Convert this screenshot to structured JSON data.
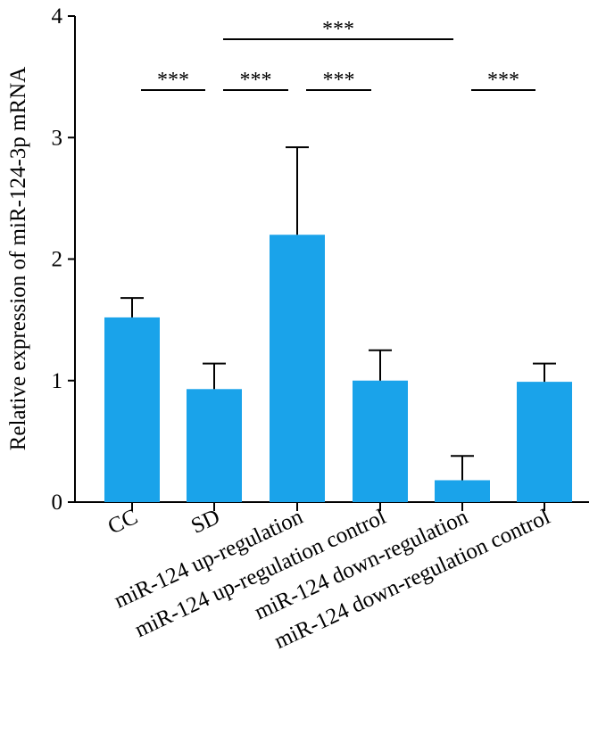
{
  "chart_data": {
    "type": "bar",
    "title": "",
    "xlabel": "",
    "ylabel": "Relative expression of miR-124-3p mRNA",
    "ylim": [
      0,
      4
    ],
    "yticks": [
      "0",
      "1",
      "2",
      "3",
      "4"
    ],
    "categories": [
      "CC",
      "SD",
      "miR-124 up-regulation",
      "miR-124 up-regulation control",
      "miR-124 down-regulation",
      "miR-124 down-regulation control"
    ],
    "values": [
      1.52,
      0.93,
      2.2,
      1.0,
      0.18,
      0.99
    ],
    "errors": [
      0.16,
      0.21,
      0.72,
      0.25,
      0.2,
      0.15
    ],
    "bar_color": "#1aa3ea",
    "significance": [
      {
        "from": 0,
        "to": 1,
        "label": "***"
      },
      {
        "from": 1,
        "to": 2,
        "label": "***"
      },
      {
        "from": 2,
        "to": 3,
        "label": "***"
      },
      {
        "from": 4,
        "to": 5,
        "label": "***"
      },
      {
        "from": 1,
        "to": 4,
        "label": "***"
      }
    ],
    "grid": false,
    "legend": "none"
  }
}
